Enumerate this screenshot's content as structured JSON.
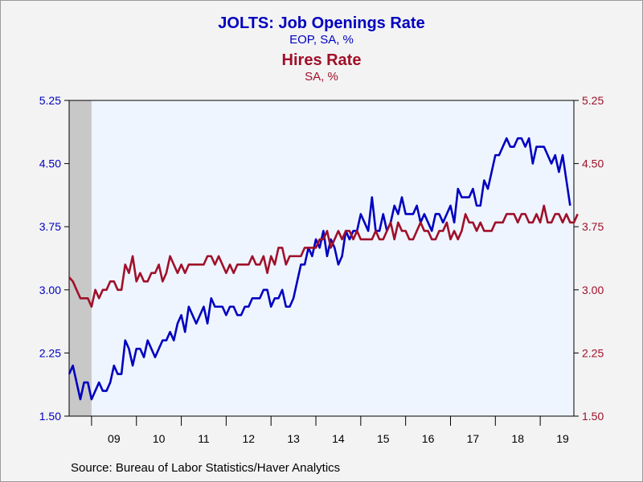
{
  "chart_data": {
    "type": "line",
    "title": "JOLTS: Job Openings Rate",
    "title_subtitle": "EOP, SA, %",
    "title2": "Hires Rate",
    "title2_subtitle": "SA, %",
    "source": "Source:  Bureau of Labor Statistics/Haver Analytics",
    "x_start": 2008.5,
    "x_end": 2019.75,
    "x_ticks": [
      {
        "label": "09",
        "pos": 2009.5
      },
      {
        "label": "10",
        "pos": 2010.5
      },
      {
        "label": "11",
        "pos": 2011.5
      },
      {
        "label": "12",
        "pos": 2012.5
      },
      {
        "label": "13",
        "pos": 2013.5
      },
      {
        "label": "14",
        "pos": 2014.5
      },
      {
        "label": "15",
        "pos": 2015.5
      },
      {
        "label": "16",
        "pos": 2016.5
      },
      {
        "label": "17",
        "pos": 2017.5
      },
      {
        "label": "18",
        "pos": 2018.5
      },
      {
        "label": "19",
        "pos": 2019.5
      }
    ],
    "ylim": [
      1.5,
      5.25
    ],
    "y_ticks": [
      "1.50",
      "2.25",
      "3.00",
      "3.75",
      "4.50",
      "5.25"
    ],
    "y_tick_values": [
      1.5,
      2.25,
      3.0,
      3.75,
      4.5,
      5.25
    ],
    "recession": [
      2008.5,
      2009.0
    ],
    "series": [
      {
        "name": "JOLTS: Job Openings Rate",
        "color": "#0000c0",
        "x_start": 2008.5,
        "values": [
          2.0,
          2.1,
          1.9,
          1.7,
          1.9,
          1.9,
          1.7,
          1.8,
          1.9,
          1.8,
          1.8,
          1.9,
          2.1,
          2.0,
          2.0,
          2.4,
          2.3,
          2.1,
          2.3,
          2.3,
          2.2,
          2.4,
          2.3,
          2.2,
          2.3,
          2.4,
          2.4,
          2.5,
          2.4,
          2.6,
          2.7,
          2.5,
          2.8,
          2.7,
          2.6,
          2.7,
          2.8,
          2.6,
          2.9,
          2.8,
          2.8,
          2.8,
          2.7,
          2.8,
          2.8,
          2.7,
          2.7,
          2.8,
          2.8,
          2.9,
          2.9,
          2.9,
          3.0,
          3.0,
          2.8,
          2.9,
          2.9,
          3.0,
          2.8,
          2.8,
          2.9,
          3.1,
          3.3,
          3.3,
          3.5,
          3.4,
          3.6,
          3.5,
          3.7,
          3.4,
          3.6,
          3.5,
          3.3,
          3.4,
          3.7,
          3.6,
          3.7,
          3.7,
          3.9,
          3.8,
          3.7,
          4.1,
          3.7,
          3.7,
          3.9,
          3.7,
          3.8,
          4.0,
          3.9,
          4.1,
          3.9,
          3.9,
          3.9,
          4.0,
          3.8,
          3.9,
          3.8,
          3.7,
          3.9,
          3.9,
          3.8,
          3.9,
          4.0,
          3.8,
          4.2,
          4.1,
          4.1,
          4.1,
          4.2,
          4.0,
          4.0,
          4.3,
          4.2,
          4.4,
          4.6,
          4.6,
          4.7,
          4.8,
          4.7,
          4.7,
          4.8,
          4.8,
          4.7,
          4.8,
          4.5,
          4.7,
          4.7,
          4.7,
          4.6,
          4.5,
          4.6,
          4.4,
          4.6,
          4.3,
          4.0
        ]
      },
      {
        "name": "Hires Rate",
        "color": "#a0102a",
        "x_start": 2008.5,
        "values": [
          3.15,
          3.1,
          3.0,
          2.9,
          2.9,
          2.9,
          2.8,
          3.0,
          2.9,
          3.0,
          3.0,
          3.1,
          3.1,
          3.0,
          3.0,
          3.3,
          3.2,
          3.4,
          3.1,
          3.2,
          3.1,
          3.1,
          3.2,
          3.2,
          3.3,
          3.1,
          3.2,
          3.4,
          3.3,
          3.2,
          3.3,
          3.2,
          3.3,
          3.3,
          3.3,
          3.3,
          3.3,
          3.4,
          3.4,
          3.3,
          3.4,
          3.3,
          3.2,
          3.3,
          3.2,
          3.3,
          3.3,
          3.3,
          3.3,
          3.4,
          3.3,
          3.3,
          3.4,
          3.2,
          3.4,
          3.3,
          3.5,
          3.5,
          3.3,
          3.4,
          3.4,
          3.4,
          3.4,
          3.5,
          3.5,
          3.5,
          3.5,
          3.6,
          3.6,
          3.7,
          3.5,
          3.6,
          3.7,
          3.6,
          3.7,
          3.7,
          3.6,
          3.7,
          3.6,
          3.6,
          3.6,
          3.6,
          3.7,
          3.6,
          3.6,
          3.7,
          3.8,
          3.6,
          3.8,
          3.7,
          3.7,
          3.6,
          3.6,
          3.7,
          3.8,
          3.7,
          3.7,
          3.6,
          3.6,
          3.7,
          3.7,
          3.8,
          3.6,
          3.7,
          3.6,
          3.7,
          3.9,
          3.8,
          3.8,
          3.7,
          3.8,
          3.7,
          3.7,
          3.7,
          3.8,
          3.8,
          3.8,
          3.9,
          3.9,
          3.9,
          3.8,
          3.9,
          3.9,
          3.8,
          3.8,
          3.9,
          3.8,
          4.0,
          3.8,
          3.8,
          3.9,
          3.9,
          3.8,
          3.9,
          3.8,
          3.8,
          3.9
        ]
      }
    ],
    "grid": false,
    "legend": "title"
  }
}
